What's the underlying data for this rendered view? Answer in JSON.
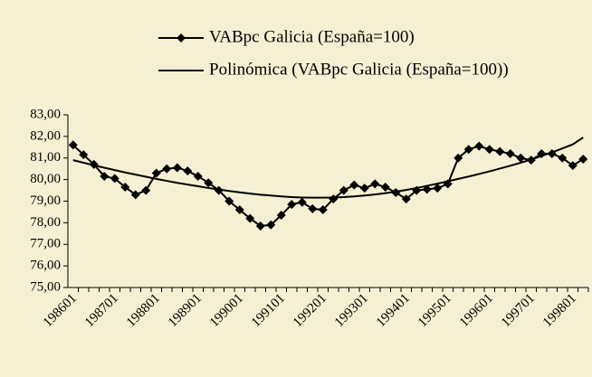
{
  "chart_data": {
    "type": "line",
    "categories": [
      "198601",
      null,
      null,
      null,
      "198701",
      null,
      null,
      null,
      "198801",
      null,
      null,
      null,
      "198901",
      null,
      null,
      null,
      "199001",
      null,
      null,
      null,
      "199101",
      null,
      null,
      null,
      "199201",
      null,
      null,
      null,
      "199301",
      null,
      null,
      null,
      "199401",
      null,
      null,
      null,
      "199501",
      null,
      null,
      null,
      "199601",
      null,
      null,
      null,
      "199701",
      null,
      null,
      null,
      "199801",
      null
    ],
    "series": [
      {
        "name": "VABpc Galicia (España=100)",
        "color": "#000000",
        "marker": "diamond",
        "values": [
          81.6,
          81.15,
          80.7,
          80.15,
          80.05,
          79.65,
          79.3,
          79.5,
          80.3,
          80.5,
          80.55,
          80.4,
          80.15,
          79.85,
          79.5,
          79.0,
          78.6,
          78.2,
          77.85,
          77.9,
          78.35,
          78.85,
          78.95,
          78.65,
          78.6,
          79.1,
          79.5,
          79.75,
          79.6,
          79.8,
          79.65,
          79.4,
          79.1,
          79.5,
          79.55,
          79.6,
          79.8,
          81.0,
          81.4,
          81.55,
          81.4,
          81.3,
          81.2,
          81.0,
          80.9,
          81.2,
          81.2,
          81.0,
          80.65,
          80.95
        ]
      },
      {
        "name": "Polinómica (VABpc Galicia (España=100))",
        "color": "#000000",
        "values": [
          80.9,
          80.78,
          80.66,
          80.55,
          80.44,
          80.33,
          80.23,
          80.13,
          80.03,
          79.94,
          79.85,
          79.77,
          79.69,
          79.61,
          79.54,
          79.47,
          79.41,
          79.35,
          79.3,
          79.26,
          79.22,
          79.19,
          79.17,
          79.16,
          79.16,
          79.17,
          79.19,
          79.22,
          79.26,
          79.31,
          79.37,
          79.44,
          79.52,
          79.61,
          79.71,
          79.81,
          79.92,
          80.03,
          80.14,
          80.26,
          80.38,
          80.51,
          80.64,
          80.78,
          80.93,
          81.09,
          81.26,
          81.44,
          81.63,
          81.95
        ]
      }
    ],
    "ylim": [
      75,
      83
    ],
    "yticks": [
      {
        "value": 75,
        "label": "75,00"
      },
      {
        "value": 76,
        "label": "76,00"
      },
      {
        "value": 77,
        "label": "77,00"
      },
      {
        "value": 78,
        "label": "78,00"
      },
      {
        "value": 79,
        "label": "79,00"
      },
      {
        "value": 80,
        "label": "80,00"
      },
      {
        "value": 81,
        "label": "81,00"
      },
      {
        "value": 82,
        "label": "82,00"
      },
      {
        "value": 83,
        "label": "83,00"
      }
    ],
    "grid": false,
    "legend": "top"
  }
}
